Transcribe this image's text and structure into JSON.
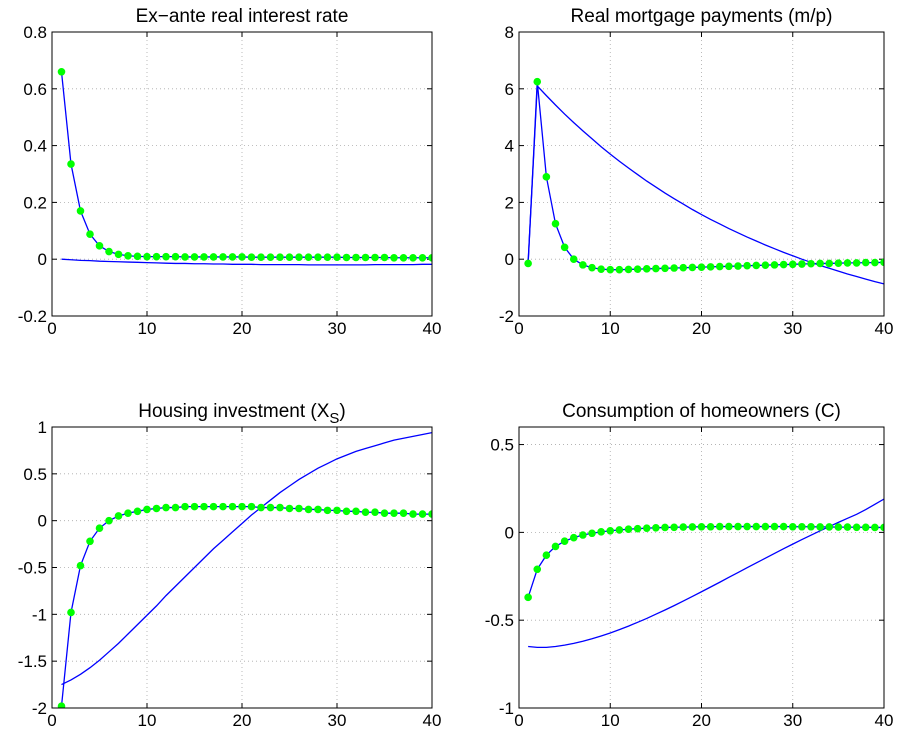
{
  "chart_data": [
    {
      "type": "line",
      "title": "Ex−ante real interest rate",
      "x": [
        1,
        2,
        3,
        4,
        5,
        6,
        7,
        8,
        9,
        10,
        11,
        12,
        13,
        14,
        15,
        16,
        17,
        18,
        19,
        20,
        21,
        22,
        23,
        24,
        25,
        26,
        27,
        28,
        29,
        30,
        31,
        32,
        33,
        34,
        35,
        36,
        37,
        38,
        39,
        40
      ],
      "series": [
        {
          "color": "#0000ff",
          "values": [
            0,
            -0.002,
            -0.004,
            -0.005,
            -0.007,
            -0.008,
            -0.009,
            -0.01,
            -0.011,
            -0.012,
            -0.013,
            -0.014,
            -0.015,
            -0.015,
            -0.016,
            -0.016,
            -0.017,
            -0.017,
            -0.018,
            -0.018,
            -0.018,
            -0.019,
            -0.019,
            -0.019,
            -0.019,
            -0.019,
            -0.02,
            -0.02,
            -0.02,
            -0.02,
            -0.02,
            -0.02,
            -0.02,
            -0.019,
            -0.019,
            -0.019,
            -0.019,
            -0.019,
            -0.018,
            -0.018
          ]
        },
        {
          "color": "#0000ff",
          "marker_color": "#00ff00",
          "values": [
            0.66,
            0.335,
            0.17,
            0.088,
            0.047,
            0.027,
            0.017,
            0.012,
            0.01,
            0.009,
            0.009,
            0.009,
            0.009,
            0.008,
            0.008,
            0.008,
            0.008,
            0.008,
            0.008,
            0.008,
            0.007,
            0.007,
            0.007,
            0.007,
            0.007,
            0.007,
            0.007,
            0.007,
            0.007,
            0.007,
            0.006,
            0.006,
            0.006,
            0.006,
            0.006,
            0.005,
            0.005,
            0.005,
            0.005,
            0.005
          ]
        }
      ],
      "xlim": [
        0,
        40
      ],
      "xticks": [
        0,
        10,
        20,
        30,
        40
      ],
      "ylim": [
        -0.2,
        0.8
      ],
      "yticks": [
        -0.2,
        0,
        0.2,
        0.4,
        0.6,
        0.8
      ],
      "grid": true
    },
    {
      "type": "line",
      "title": "Real mortgage payments (m/p)",
      "x": [
        1,
        2,
        3,
        4,
        5,
        6,
        7,
        8,
        9,
        10,
        11,
        12,
        13,
        14,
        15,
        16,
        17,
        18,
        19,
        20,
        21,
        22,
        23,
        24,
        25,
        26,
        27,
        28,
        29,
        30,
        31,
        32,
        33,
        34,
        35,
        36,
        37,
        38,
        39,
        40
      ],
      "series": [
        {
          "color": "#0000ff",
          "values": [
            -0.1,
            6.1,
            5.76,
            5.43,
            5.11,
            4.81,
            4.52,
            4.24,
            3.96,
            3.7,
            3.45,
            3.21,
            2.98,
            2.75,
            2.54,
            2.33,
            2.13,
            1.94,
            1.75,
            1.57,
            1.4,
            1.24,
            1.08,
            0.93,
            0.78,
            0.64,
            0.5,
            0.37,
            0.24,
            0.12,
            0.0,
            -0.11,
            -0.22,
            -0.32,
            -0.42,
            -0.52,
            -0.61,
            -0.7,
            -0.79,
            -0.87
          ]
        },
        {
          "color": "#0000ff",
          "marker_color": "#00ff00",
          "values": [
            -0.15,
            6.25,
            2.9,
            1.25,
            0.42,
            0.0,
            -0.2,
            -0.3,
            -0.35,
            -0.37,
            -0.37,
            -0.36,
            -0.35,
            -0.34,
            -0.33,
            -0.32,
            -0.31,
            -0.3,
            -0.29,
            -0.28,
            -0.27,
            -0.26,
            -0.25,
            -0.24,
            -0.23,
            -0.22,
            -0.21,
            -0.2,
            -0.19,
            -0.18,
            -0.17,
            -0.16,
            -0.15,
            -0.15,
            -0.14,
            -0.13,
            -0.13,
            -0.12,
            -0.12,
            -0.11
          ]
        }
      ],
      "xlim": [
        0,
        40
      ],
      "xticks": [
        0,
        10,
        20,
        30,
        40
      ],
      "ylim": [
        -2,
        8
      ],
      "yticks": [
        -2,
        0,
        2,
        4,
        6,
        8
      ],
      "grid": true
    },
    {
      "type": "line",
      "title": "Housing investment (X_S)",
      "x": [
        1,
        2,
        3,
        4,
        5,
        6,
        7,
        8,
        9,
        10,
        11,
        12,
        13,
        14,
        15,
        16,
        17,
        18,
        19,
        20,
        21,
        22,
        23,
        24,
        25,
        26,
        27,
        28,
        29,
        30,
        31,
        32,
        33,
        34,
        35,
        36,
        37,
        38,
        39,
        40
      ],
      "series": [
        {
          "color": "#0000ff",
          "values": [
            -1.75,
            -1.7,
            -1.64,
            -1.57,
            -1.49,
            -1.4,
            -1.31,
            -1.21,
            -1.11,
            -1.01,
            -0.91,
            -0.8,
            -0.7,
            -0.6,
            -0.5,
            -0.4,
            -0.3,
            -0.21,
            -0.12,
            -0.03,
            0.06,
            0.14,
            0.22,
            0.3,
            0.37,
            0.44,
            0.5,
            0.56,
            0.61,
            0.66,
            0.7,
            0.74,
            0.77,
            0.8,
            0.83,
            0.86,
            0.88,
            0.9,
            0.92,
            0.94
          ]
        },
        {
          "color": "#0000ff",
          "marker_color": "#00ff00",
          "values": [
            -1.98,
            -0.98,
            -0.48,
            -0.22,
            -0.08,
            0.0,
            0.05,
            0.08,
            0.1,
            0.12,
            0.13,
            0.14,
            0.14,
            0.15,
            0.15,
            0.15,
            0.15,
            0.15,
            0.15,
            0.15,
            0.15,
            0.14,
            0.14,
            0.14,
            0.13,
            0.13,
            0.12,
            0.12,
            0.11,
            0.11,
            0.1,
            0.1,
            0.09,
            0.09,
            0.08,
            0.08,
            0.08,
            0.07,
            0.07,
            0.07
          ]
        }
      ],
      "xlim": [
        0,
        40
      ],
      "xticks": [
        0,
        10,
        20,
        30,
        40
      ],
      "ylim": [
        -2,
        1
      ],
      "yticks": [
        -2,
        -1.5,
        -1,
        -0.5,
        0,
        0.5,
        1
      ],
      "grid": true
    },
    {
      "type": "line",
      "title": "Consumption of homeowners (C)",
      "x": [
        1,
        2,
        3,
        4,
        5,
        6,
        7,
        8,
        9,
        10,
        11,
        12,
        13,
        14,
        15,
        16,
        17,
        18,
        19,
        20,
        21,
        22,
        23,
        24,
        25,
        26,
        27,
        28,
        29,
        30,
        31,
        32,
        33,
        34,
        35,
        36,
        37,
        38,
        39,
        40
      ],
      "series": [
        {
          "color": "#0000ff",
          "values": [
            -0.65,
            -0.655,
            -0.655,
            -0.65,
            -0.642,
            -0.632,
            -0.62,
            -0.606,
            -0.59,
            -0.573,
            -0.554,
            -0.534,
            -0.512,
            -0.49,
            -0.466,
            -0.442,
            -0.417,
            -0.391,
            -0.365,
            -0.338,
            -0.311,
            -0.284,
            -0.256,
            -0.229,
            -0.201,
            -0.174,
            -0.147,
            -0.12,
            -0.093,
            -0.067,
            -0.041,
            -0.016,
            0.009,
            0.033,
            0.057,
            0.08,
            0.103,
            0.13,
            0.16,
            0.19
          ]
        },
        {
          "color": "#0000ff",
          "marker_color": "#00ff00",
          "values": [
            -0.37,
            -0.21,
            -0.13,
            -0.08,
            -0.05,
            -0.03,
            -0.015,
            -0.005,
            0.003,
            0.009,
            0.014,
            0.018,
            0.021,
            0.024,
            0.026,
            0.028,
            0.029,
            0.03,
            0.031,
            0.032,
            0.032,
            0.033,
            0.033,
            0.033,
            0.033,
            0.033,
            0.033,
            0.033,
            0.033,
            0.032,
            0.032,
            0.032,
            0.031,
            0.031,
            0.03,
            0.03,
            0.029,
            0.029,
            0.028,
            0.028
          ]
        }
      ],
      "xlim": [
        0,
        40
      ],
      "xticks": [
        0,
        10,
        20,
        30,
        40
      ],
      "ylim": [
        -1,
        0.6
      ],
      "yticks": [
        -1,
        -0.5,
        0,
        0.5
      ],
      "grid": true
    }
  ]
}
